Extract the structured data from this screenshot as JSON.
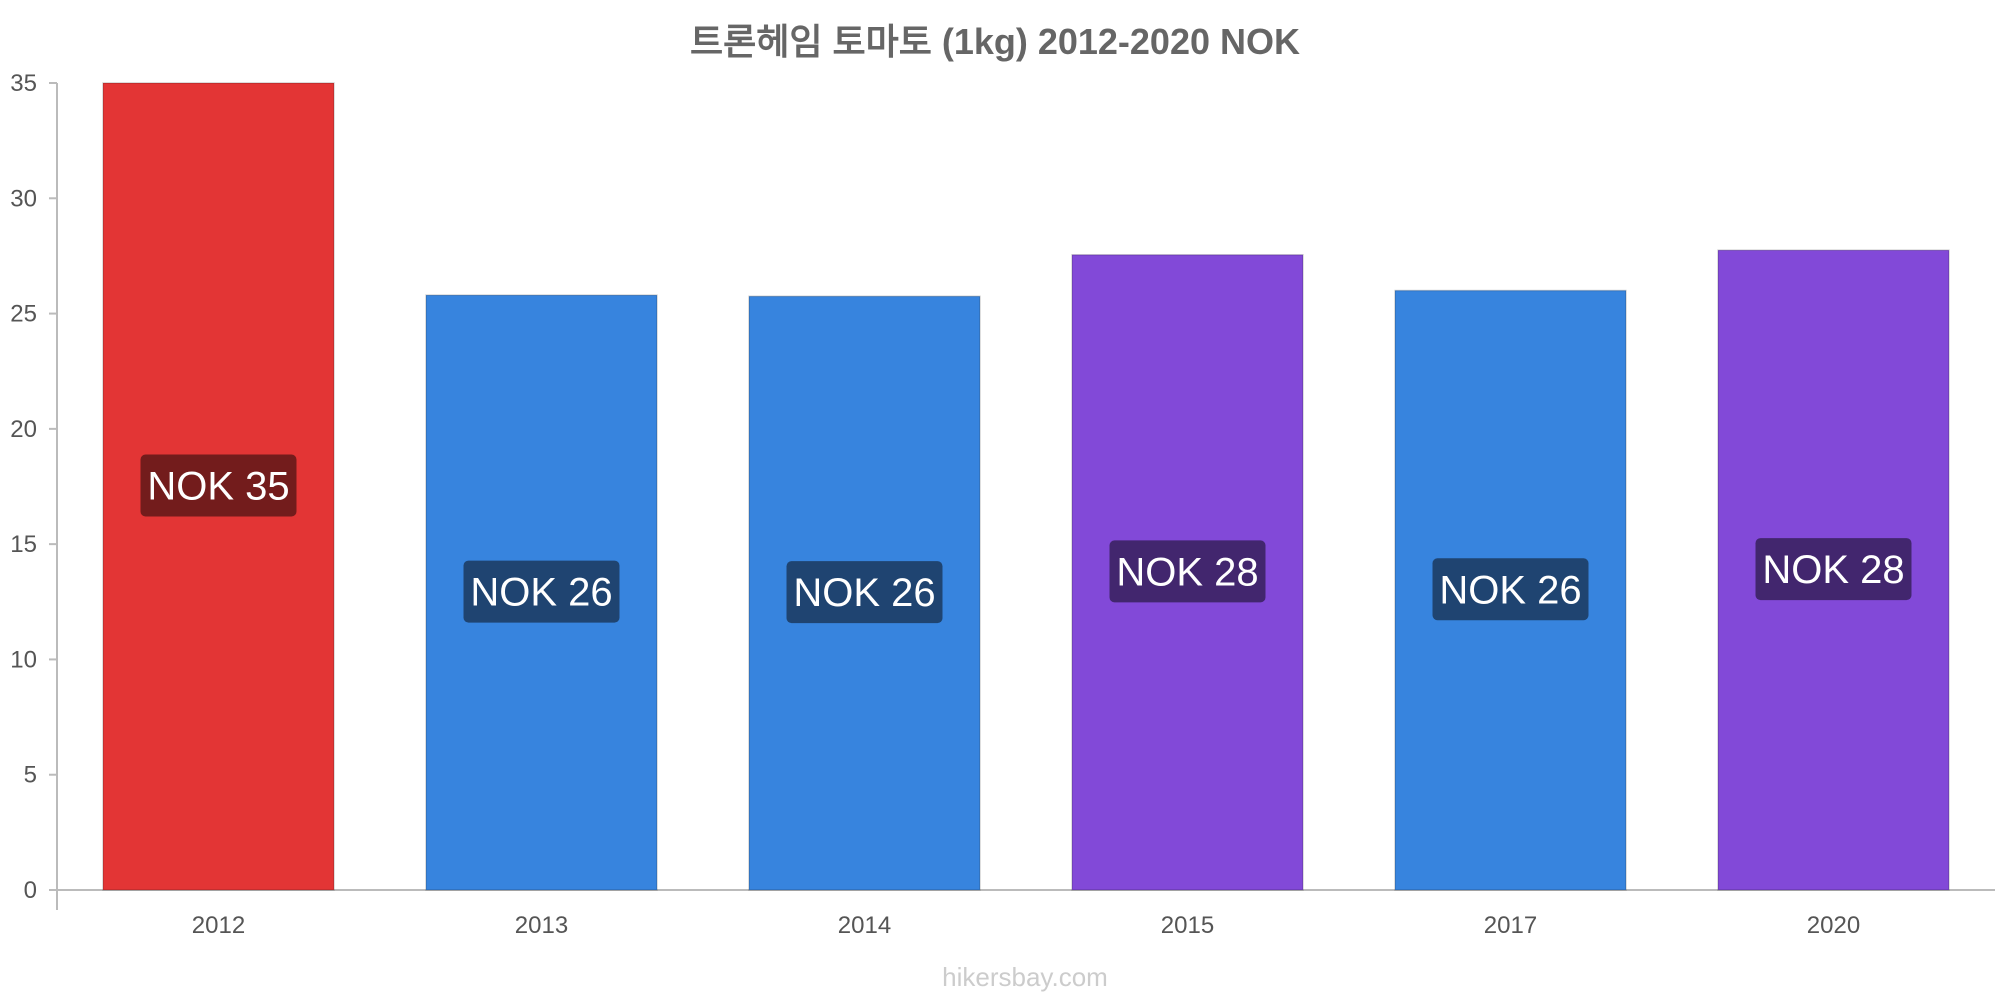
{
  "chart_data": {
    "type": "bar",
    "title": "트론헤임 토마토 (1kg) 2012-2020 NOK",
    "xlabel": "",
    "ylabel": "",
    "categories": [
      "2012",
      "2013",
      "2014",
      "2015",
      "2017",
      "2020"
    ],
    "values": [
      35,
      25.8,
      25.75,
      27.55,
      26,
      27.75
    ],
    "data_labels": [
      "NOK 35",
      "NOK 26",
      "NOK 26",
      "NOK 28",
      "NOK 26",
      "NOK 28"
    ],
    "bar_colors": [
      "#e33535",
      "#3784de",
      "#3784de",
      "#8249d8",
      "#3784de",
      "#8249d8"
    ],
    "label_bg_colors": [
      "#731c1c",
      "#1f4471",
      "#1f4471",
      "#42266e",
      "#1f4471",
      "#42266e"
    ],
    "ylim": [
      0,
      35
    ],
    "yticks": [
      0,
      5,
      10,
      15,
      20,
      25,
      30,
      35
    ],
    "grid": false,
    "legend": "none"
  },
  "source": "hikersbay.com"
}
